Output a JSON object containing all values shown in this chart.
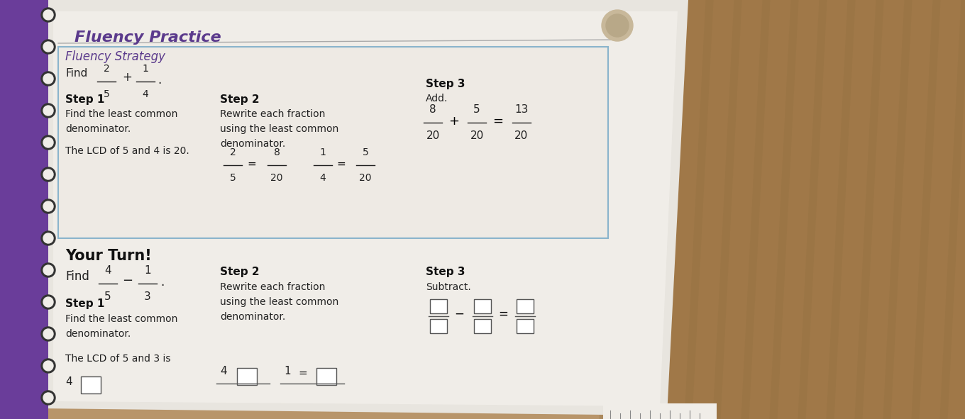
{
  "bg_color": "#b8956a",
  "page_bg": "#ddd8d0",
  "page_inner": "#e8e4de",
  "title": "Fluency Practice",
  "title_color": "#5b3a8c",
  "strategy_label": "Fluency Strategy",
  "strategy_color": "#5b3a8c",
  "step_bold_color": "#111111",
  "text_color": "#222222",
  "box_border": "#8ab4cc",
  "purple_bind": "#6a3d9a",
  "step1_label": "Step 1",
  "step1_line1": "Find the least common",
  "step1_line2": "denominator.",
  "step1_line3": "The LCD of 5 and 4 is 20.",
  "step2_label": "Step 2",
  "step2_line1": "Rewrite each fraction",
  "step2_line2": "using the least common",
  "step2_line3": "denominator.",
  "step3_label": "Step 3",
  "step3_add": "Add.",
  "your_turn": "Your Turn!",
  "bot_step1_label": "Step 1",
  "bot_step1_line1": "Find the least common",
  "bot_step1_line2": "denominator.",
  "bot_step1_line3": "The LCD of 5 and 3 is",
  "bot_step2_label": "Step 2",
  "bot_step2_line1": "Rewrite each fraction",
  "bot_step2_line2": "using the least common",
  "bot_step2_line3": "denominator.",
  "bot_step3_label": "Step 3",
  "bot_step3_sub": "Subtract."
}
